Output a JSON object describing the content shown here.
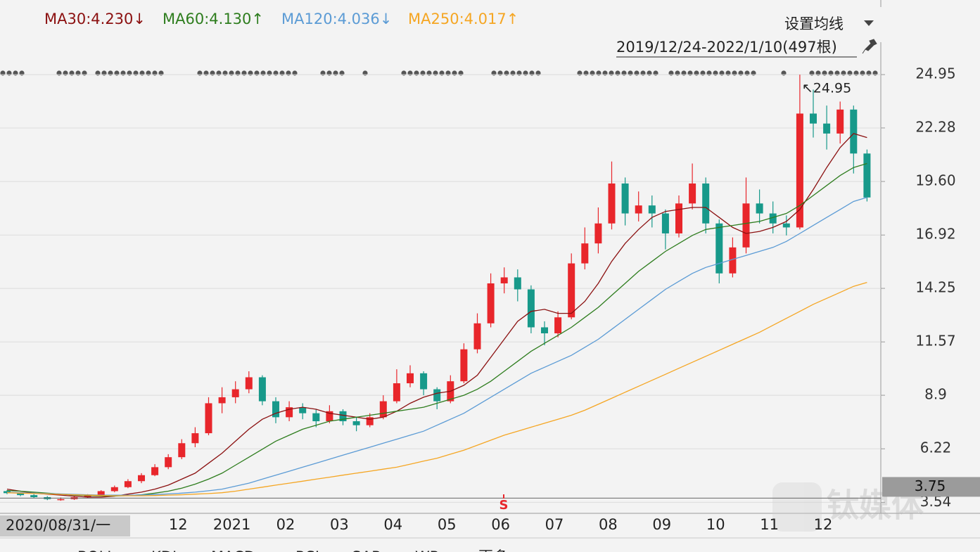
{
  "chart_data": {
    "type": "candlestick",
    "date_range": "2019/12/24-2022/1/10(497根)",
    "settings_button": "设置均线",
    "cursor_date": "2020/08/31/一",
    "crosshair": {
      "value": 3.75
    },
    "signal_marker": "S",
    "annotation": "↖24.95",
    "watermark": "钛媒体",
    "indicator_tabs": [
      "BOLL",
      "KDJ",
      "MACD",
      "RSI",
      "SAR",
      "WR",
      "更多"
    ],
    "up_color": "#e8262b",
    "down_color": "#17998a",
    "categories": [
      null,
      null,
      null,
      null,
      null,
      null,
      null,
      null,
      null,
      null,
      null,
      null,
      "12",
      null,
      null,
      null,
      "2021",
      null,
      null,
      null,
      "02",
      null,
      null,
      null,
      "03",
      null,
      null,
      null,
      "04",
      null,
      null,
      null,
      "05",
      null,
      null,
      null,
      "06",
      null,
      null,
      null,
      "07",
      null,
      null,
      null,
      "08",
      null,
      null,
      null,
      "09",
      null,
      null,
      null,
      "10",
      null,
      null,
      null,
      "11",
      null,
      null,
      null,
      "12",
      null,
      null,
      null,
      null
    ],
    "open": [
      4.1,
      4.0,
      3.9,
      3.8,
      3.7,
      3.7,
      3.8,
      3.9,
      4.1,
      4.3,
      4.6,
      4.9,
      5.3,
      5.8,
      6.5,
      7.0,
      8.5,
      8.8,
      9.2,
      9.8,
      8.6,
      7.8,
      8.3,
      8.0,
      7.6,
      8.1,
      7.6,
      7.4,
      7.8,
      8.6,
      9.5,
      10.0,
      9.2,
      8.6,
      9.6,
      11.2,
      12.5,
      14.5,
      14.8,
      14.2,
      12.3,
      12.0,
      12.8,
      15.5,
      16.5,
      17.5,
      19.5,
      18.0,
      18.4,
      18.0,
      17.0,
      18.5,
      19.5,
      17.5,
      15.0,
      16.3,
      18.5,
      18.0,
      17.5,
      17.3,
      23.0,
      22.5,
      22.0,
      23.2,
      21.0
    ],
    "high": [
      4.15,
      4.05,
      3.95,
      3.85,
      3.78,
      3.85,
      3.95,
      4.15,
      4.38,
      4.7,
      5.0,
      5.45,
      5.95,
      6.7,
      7.3,
      8.8,
      9.3,
      9.6,
      10.1,
      9.9,
      8.8,
      8.6,
      8.5,
      8.2,
      8.4,
      8.2,
      7.8,
      8.0,
      8.9,
      10.2,
      10.4,
      10.1,
      9.3,
      9.9,
      11.5,
      13.0,
      15.0,
      15.3,
      15.2,
      14.4,
      12.6,
      13.1,
      16.0,
      17.3,
      18.3,
      20.6,
      19.8,
      19.1,
      18.9,
      18.2,
      18.9,
      20.5,
      19.8,
      17.7,
      16.8,
      19.8,
      19.2,
      18.6,
      17.9,
      24.95,
      24.2,
      23.4,
      23.6,
      23.4,
      21.2
    ],
    "low": [
      3.95,
      3.85,
      3.75,
      3.65,
      3.62,
      3.66,
      3.76,
      3.86,
      4.05,
      4.25,
      4.5,
      4.85,
      5.2,
      5.7,
      6.3,
      6.9,
      8.0,
      8.5,
      9.0,
      8.4,
      7.5,
      7.6,
      7.7,
      7.3,
      7.5,
      7.4,
      7.1,
      7.3,
      7.7,
      8.5,
      9.3,
      8.9,
      8.2,
      8.5,
      9.5,
      11.0,
      12.3,
      14.0,
      13.6,
      12.0,
      11.4,
      11.8,
      12.7,
      15.2,
      16.0,
      17.2,
      17.4,
      17.6,
      17.3,
      16.2,
      16.8,
      18.2,
      17.0,
      14.5,
      14.8,
      16.0,
      17.5,
      17.0,
      16.9,
      17.2,
      21.8,
      21.2,
      21.5,
      20.0,
      18.6
    ],
    "close": [
      4.0,
      3.9,
      3.8,
      3.7,
      3.7,
      3.8,
      3.9,
      4.1,
      4.3,
      4.6,
      4.9,
      5.3,
      5.8,
      6.5,
      7.0,
      8.5,
      8.8,
      9.2,
      9.8,
      8.6,
      7.8,
      8.3,
      8.0,
      7.6,
      8.1,
      7.6,
      7.4,
      7.8,
      8.6,
      9.5,
      10.0,
      9.2,
      8.6,
      9.6,
      11.2,
      12.5,
      14.5,
      14.8,
      14.2,
      12.3,
      12.0,
      12.8,
      15.5,
      16.5,
      17.5,
      19.5,
      18.0,
      18.4,
      18.0,
      17.0,
      18.5,
      19.5,
      17.5,
      15.0,
      16.3,
      18.5,
      18.0,
      17.5,
      17.3,
      23.0,
      22.5,
      22.0,
      23.2,
      21.0,
      18.8
    ],
    "series": [
      {
        "name": "MA30",
        "legend_label": "MA30:4.230↓",
        "color": "#8b1010",
        "values": [
          4.2,
          4.1,
          4.0,
          3.95,
          3.9,
          3.85,
          3.8,
          3.8,
          3.85,
          3.95,
          4.05,
          4.2,
          4.4,
          4.7,
          5.0,
          5.5,
          6.0,
          6.6,
          7.2,
          7.7,
          8.0,
          8.2,
          8.3,
          8.2,
          8.0,
          7.9,
          7.8,
          7.7,
          7.8,
          8.1,
          8.5,
          8.8,
          9.0,
          9.1,
          9.4,
          9.9,
          10.8,
          11.7,
          12.6,
          13.1,
          13.2,
          13.0,
          13.0,
          13.6,
          14.5,
          15.6,
          16.5,
          17.2,
          17.8,
          18.1,
          18.2,
          18.3,
          18.3,
          17.8,
          17.3,
          17.0,
          17.1,
          17.3,
          17.6,
          18.2,
          19.2,
          20.3,
          21.3,
          22.0,
          21.8
        ]
      },
      {
        "name": "MA60",
        "legend_label": "MA60:4.130↑",
        "color": "#2e7d1e",
        "values": [
          4.13,
          4.1,
          4.05,
          4.0,
          3.95,
          3.9,
          3.88,
          3.86,
          3.86,
          3.88,
          3.92,
          4.0,
          4.1,
          4.25,
          4.45,
          4.7,
          5.0,
          5.4,
          5.8,
          6.2,
          6.6,
          6.9,
          7.2,
          7.4,
          7.6,
          7.7,
          7.8,
          7.9,
          8.0,
          8.1,
          8.2,
          8.3,
          8.5,
          8.7,
          8.9,
          9.2,
          9.6,
          10.1,
          10.6,
          11.1,
          11.5,
          11.9,
          12.3,
          12.8,
          13.3,
          13.9,
          14.5,
          15.1,
          15.6,
          16.1,
          16.5,
          16.9,
          17.2,
          17.3,
          17.4,
          17.5,
          17.6,
          17.8,
          18.0,
          18.4,
          18.9,
          19.4,
          19.9,
          20.3,
          20.5
        ]
      },
      {
        "name": "MA120",
        "legend_label": "MA120:4.036↓",
        "color": "#5b9bd5",
        "values": [
          4.04,
          4.02,
          4.0,
          3.98,
          3.96,
          3.94,
          3.92,
          3.9,
          3.9,
          3.9,
          3.91,
          3.93,
          3.96,
          4.0,
          4.05,
          4.12,
          4.2,
          4.35,
          4.5,
          4.7,
          4.9,
          5.1,
          5.3,
          5.5,
          5.7,
          5.9,
          6.1,
          6.3,
          6.5,
          6.7,
          6.9,
          7.1,
          7.4,
          7.7,
          8.0,
          8.4,
          8.8,
          9.2,
          9.6,
          10.0,
          10.3,
          10.6,
          10.9,
          11.3,
          11.7,
          12.2,
          12.7,
          13.2,
          13.7,
          14.2,
          14.6,
          15.0,
          15.3,
          15.5,
          15.7,
          15.9,
          16.1,
          16.3,
          16.6,
          17.0,
          17.4,
          17.8,
          18.2,
          18.6,
          18.8
        ]
      },
      {
        "name": "MA250",
        "legend_label": "MA250:4.017↑",
        "color": "#f5a623",
        "values": [
          4.02,
          4.0,
          3.98,
          3.96,
          3.94,
          3.92,
          3.9,
          3.88,
          3.87,
          3.87,
          3.87,
          3.88,
          3.9,
          3.92,
          3.95,
          3.98,
          4.02,
          4.1,
          4.2,
          4.3,
          4.4,
          4.5,
          4.6,
          4.7,
          4.8,
          4.9,
          5.0,
          5.1,
          5.2,
          5.3,
          5.45,
          5.6,
          5.75,
          5.95,
          6.15,
          6.4,
          6.65,
          6.9,
          7.1,
          7.3,
          7.5,
          7.7,
          7.9,
          8.15,
          8.45,
          8.75,
          9.05,
          9.35,
          9.65,
          9.95,
          10.25,
          10.55,
          10.85,
          11.15,
          11.45,
          11.75,
          12.05,
          12.4,
          12.75,
          13.1,
          13.45,
          13.75,
          14.05,
          14.35,
          14.55
        ]
      }
    ],
    "ylim": [
      2.99,
      27.1
    ],
    "yticks": [
      3.54,
      6.22,
      8.9,
      {
        "value": 11.57,
        "label": "11.57"
      },
      14.25,
      16.92,
      {
        "value": 19.6,
        "label": "19.60"
      },
      22.28,
      24.95
    ],
    "grid": true
  }
}
